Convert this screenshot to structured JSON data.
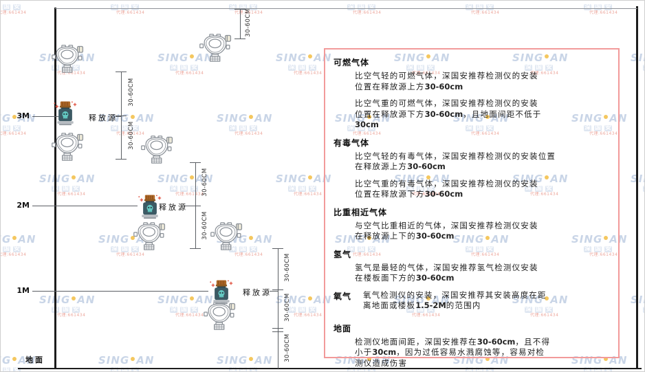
{
  "diagram": {
    "height_labels": [
      "3M",
      "2M",
      "1M"
    ],
    "ground_label": "地面",
    "release_source_label": "释放源",
    "dimension_label": "30-60CM"
  },
  "panel": {
    "sections": [
      {
        "heading": "可燃气体",
        "inline": false,
        "paragraphs": [
          [
            "比空气轻的可燃气体，深国安推荐检测仪的安装",
            "位置在释放源上方30-60cm"
          ],
          [
            "比空气重的可燃气体，深国安推荐检测仪的安装",
            "位置在释放源下方30-60cm，且地面间距不低于",
            "30cm"
          ]
        ]
      },
      {
        "heading": "有毒气体",
        "inline": false,
        "paragraphs": [
          [
            "比空气轻的有毒气体，深国安推荐检测仪的安装位置",
            "在释放源上方30-60cm"
          ],
          [
            "比空气重的有毒气体，深国安推荐检测仪的安装",
            "位置在释放源下方30-60cm"
          ]
        ]
      },
      {
        "heading": "比重相近气体",
        "inline": false,
        "paragraphs": [
          [
            "与空气比重相近的气体，深国安推荐检测仪安装",
            "在释放源上下的30-60cm"
          ]
        ]
      },
      {
        "heading": "氢气",
        "inline": false,
        "paragraphs": [
          [
            "氢气是最轻的气体，深国安推荐氢气检测仪安装",
            "在楼板面下方的30-60cm"
          ]
        ]
      },
      {
        "heading": "氧气",
        "inline": true,
        "paragraphs": [
          [
            "氧气检测仪的安装，深国安推荐其安装高度在距",
            "离地面或楼板1.5-2M的范围内"
          ]
        ]
      },
      {
        "heading": "地面",
        "inline": false,
        "paragraphs": [
          [
            "检测仪地面间距，深国安推荐在30-60cm，且不得",
            "小于30cm，因为过低容易水溅腐蚀等，容易对检",
            "测仪造成伤害"
          ]
        ]
      }
    ]
  },
  "watermark": {
    "brand_left": "SING",
    "brand_right": "AN",
    "cn_chars": "深国安",
    "contact": "代理:661434"
  },
  "colors": {
    "panel_border": "#f29a9a",
    "wall": "#1c1c1c",
    "dimension_line": "#5a5e63",
    "detector_outline": "#8a9097",
    "release_body": "#3c5a64",
    "release_skull": "#63c9c2",
    "release_lid": "#b06a28",
    "spark_red": "#e0503f",
    "watermark_blue": "#a8bcd9",
    "watermark_dot": "#f0b429",
    "watermark_red": "#e06a5a"
  }
}
